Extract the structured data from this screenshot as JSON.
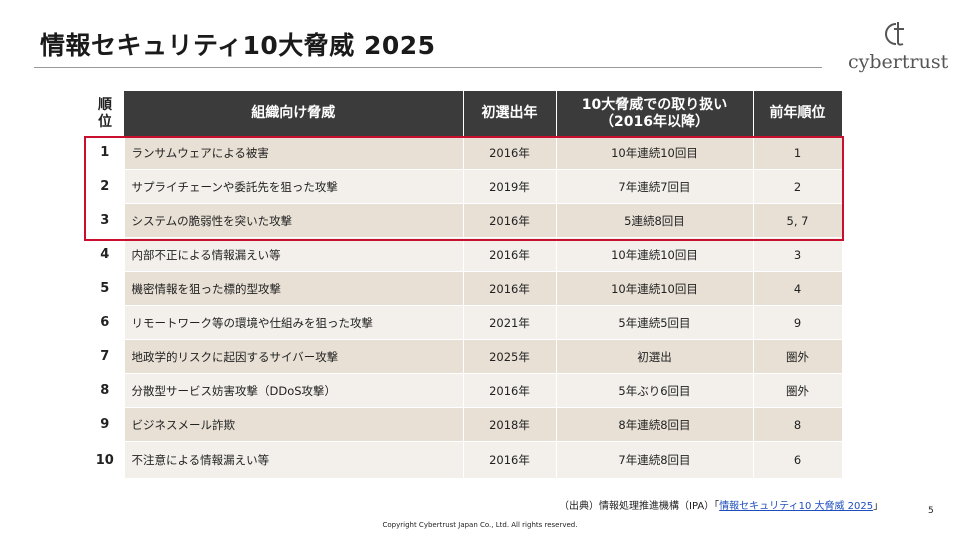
{
  "title": "情報セキュリティ10大脅威 2025",
  "logo": {
    "text": "cybertrust",
    "icon": "ct-monogram-icon"
  },
  "table": {
    "headers": {
      "rank": "順\n位",
      "threat": "組織向け脅威",
      "first_year": "初選出年",
      "times": "10大脅威での取り扱い\n（2016年以降）",
      "prev_rank": "前年順位"
    },
    "rows": [
      {
        "rank": "1",
        "threat": "ランサムウェアによる被害",
        "first_year": "2016年",
        "times": "10年連続10回目",
        "prev_rank": "1"
      },
      {
        "rank": "2",
        "threat": "サプライチェーンや委託先を狙った攻撃",
        "first_year": "2019年",
        "times": "7年連続7回目",
        "prev_rank": "2"
      },
      {
        "rank": "3",
        "threat": "システムの脆弱性を突いた攻撃",
        "first_year": "2016年",
        "times": "5連続8回目",
        "prev_rank": "5, 7"
      },
      {
        "rank": "4",
        "threat": "内部不正による情報漏えい等",
        "first_year": "2016年",
        "times": "10年連続10回目",
        "prev_rank": "3"
      },
      {
        "rank": "5",
        "threat": "機密情報を狙った標的型攻撃",
        "first_year": "2016年",
        "times": "10年連続10回目",
        "prev_rank": "4"
      },
      {
        "rank": "6",
        "threat": "リモートワーク等の環境や仕組みを狙った攻撃",
        "first_year": "2021年",
        "times": "5年連続5回目",
        "prev_rank": "9"
      },
      {
        "rank": "7",
        "threat": "地政学的リスクに起因するサイバー攻撃",
        "first_year": "2025年",
        "times": "初選出",
        "prev_rank": "圏外"
      },
      {
        "rank": "8",
        "threat": "分散型サービス妨害攻撃（DDoS攻撃）",
        "first_year": "2016年",
        "times": "5年ぶり6回目",
        "prev_rank": "圏外"
      },
      {
        "rank": "9",
        "threat": "ビジネスメール詐欺",
        "first_year": "2018年",
        "times": "8年連続8回目",
        "prev_rank": "8"
      },
      {
        "rank": "10",
        "threat": "不注意による情報漏えい等",
        "first_year": "2016年",
        "times": "7年連続8回目",
        "prev_rank": "6"
      }
    ]
  },
  "source": {
    "prefix": "（出典）情報処理推進機構（IPA）「",
    "link_text": "情報セキュリティ10 大脅威 2025",
    "suffix": "」"
  },
  "page_number": "5",
  "copyright": "Copyright Cybertrust Japan Co., Ltd. All rights reserved.",
  "colors": {
    "header_bg": "#3b3b3b",
    "row_odd": "#e8e0d5",
    "row_even": "#f3f0ec",
    "highlight_border": "#c8102e",
    "link": "#1f4fbf"
  }
}
